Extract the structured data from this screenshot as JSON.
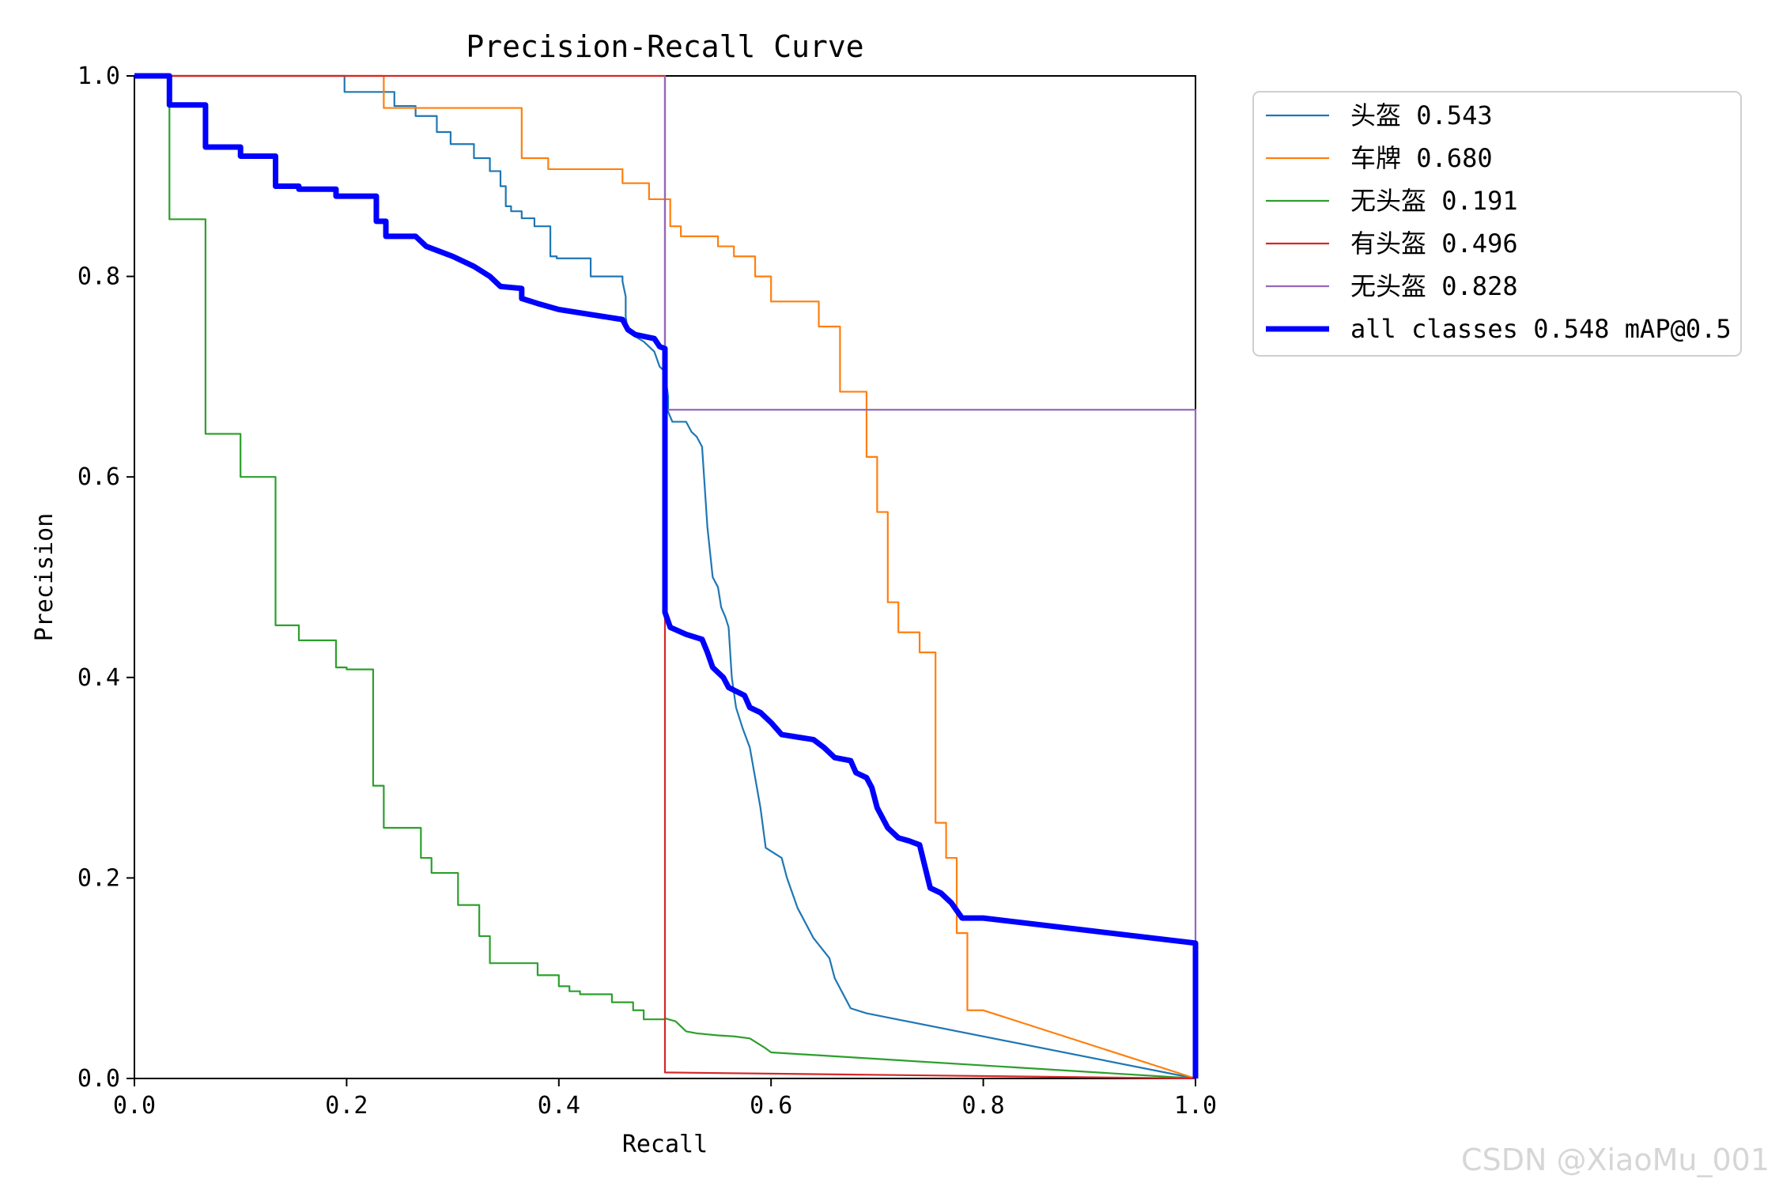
{
  "watermark": "CSDN @XiaoMu_001",
  "chart_data": {
    "type": "line",
    "title": "Precision-Recall Curve",
    "xlabel": "Recall",
    "ylabel": "Precision",
    "xlim": [
      0,
      1
    ],
    "ylim": [
      0,
      1
    ],
    "xticks": [
      "0.0",
      "0.2",
      "0.4",
      "0.6",
      "0.8",
      "1.0"
    ],
    "yticks": [
      "0.0",
      "0.2",
      "0.4",
      "0.6",
      "0.8",
      "1.0"
    ],
    "grid": false,
    "legend_position": "outside-top-right",
    "series": [
      {
        "name": "头盔 0.543",
        "color": "#1f77b4",
        "width": 2.2,
        "points": [
          [
            0,
            1
          ],
          [
            0.198,
            1
          ],
          [
            0.198,
            0.984
          ],
          [
            0.245,
            0.984
          ],
          [
            0.245,
            0.97
          ],
          [
            0.265,
            0.97
          ],
          [
            0.265,
            0.96
          ],
          [
            0.285,
            0.96
          ],
          [
            0.285,
            0.944
          ],
          [
            0.298,
            0.944
          ],
          [
            0.298,
            0.932
          ],
          [
            0.32,
            0.932
          ],
          [
            0.32,
            0.918
          ],
          [
            0.335,
            0.918
          ],
          [
            0.335,
            0.905
          ],
          [
            0.345,
            0.905
          ],
          [
            0.345,
            0.89
          ],
          [
            0.35,
            0.89
          ],
          [
            0.35,
            0.87
          ],
          [
            0.355,
            0.87
          ],
          [
            0.355,
            0.865
          ],
          [
            0.365,
            0.865
          ],
          [
            0.365,
            0.858
          ],
          [
            0.377,
            0.858
          ],
          [
            0.377,
            0.85
          ],
          [
            0.392,
            0.85
          ],
          [
            0.392,
            0.82
          ],
          [
            0.398,
            0.82
          ],
          [
            0.398,
            0.818
          ],
          [
            0.43,
            0.818
          ],
          [
            0.43,
            0.8
          ],
          [
            0.46,
            0.8
          ],
          [
            0.46,
            0.795
          ],
          [
            0.463,
            0.78
          ],
          [
            0.463,
            0.76
          ],
          [
            0.465,
            0.745
          ],
          [
            0.472,
            0.74
          ],
          [
            0.48,
            0.735
          ],
          [
            0.49,
            0.725
          ],
          [
            0.495,
            0.71
          ],
          [
            0.5,
            0.705
          ],
          [
            0.503,
            0.68
          ],
          [
            0.503,
            0.665
          ],
          [
            0.507,
            0.655
          ],
          [
            0.52,
            0.655
          ],
          [
            0.525,
            0.645
          ],
          [
            0.53,
            0.64
          ],
          [
            0.535,
            0.63
          ],
          [
            0.54,
            0.55
          ],
          [
            0.545,
            0.5
          ],
          [
            0.55,
            0.49
          ],
          [
            0.553,
            0.47
          ],
          [
            0.557,
            0.46
          ],
          [
            0.56,
            0.45
          ],
          [
            0.563,
            0.4
          ],
          [
            0.567,
            0.37
          ],
          [
            0.573,
            0.35
          ],
          [
            0.58,
            0.33
          ],
          [
            0.585,
            0.3
          ],
          [
            0.59,
            0.27
          ],
          [
            0.595,
            0.23
          ],
          [
            0.61,
            0.22
          ],
          [
            0.615,
            0.2
          ],
          [
            0.625,
            0.17
          ],
          [
            0.635,
            0.15
          ],
          [
            0.64,
            0.14
          ],
          [
            0.655,
            0.12
          ],
          [
            0.66,
            0.1
          ],
          [
            0.665,
            0.09
          ],
          [
            0.67,
            0.08
          ],
          [
            0.675,
            0.07
          ],
          [
            0.69,
            0.065
          ],
          [
            1,
            0
          ]
        ]
      },
      {
        "name": "车牌 0.680",
        "color": "#ff7f0e",
        "width": 2.2,
        "points": [
          [
            0,
            1
          ],
          [
            0.235,
            1
          ],
          [
            0.235,
            0.968
          ],
          [
            0.365,
            0.968
          ],
          [
            0.365,
            0.918
          ],
          [
            0.39,
            0.918
          ],
          [
            0.39,
            0.907
          ],
          [
            0.46,
            0.907
          ],
          [
            0.46,
            0.893
          ],
          [
            0.485,
            0.893
          ],
          [
            0.485,
            0.877
          ],
          [
            0.505,
            0.877
          ],
          [
            0.505,
            0.85
          ],
          [
            0.515,
            0.85
          ],
          [
            0.515,
            0.84
          ],
          [
            0.55,
            0.84
          ],
          [
            0.55,
            0.83
          ],
          [
            0.565,
            0.83
          ],
          [
            0.565,
            0.82
          ],
          [
            0.585,
            0.82
          ],
          [
            0.585,
            0.8
          ],
          [
            0.6,
            0.8
          ],
          [
            0.6,
            0.775
          ],
          [
            0.645,
            0.775
          ],
          [
            0.645,
            0.75
          ],
          [
            0.665,
            0.75
          ],
          [
            0.665,
            0.685
          ],
          [
            0.69,
            0.685
          ],
          [
            0.69,
            0.62
          ],
          [
            0.7,
            0.62
          ],
          [
            0.7,
            0.565
          ],
          [
            0.71,
            0.565
          ],
          [
            0.71,
            0.475
          ],
          [
            0.72,
            0.475
          ],
          [
            0.72,
            0.445
          ],
          [
            0.74,
            0.445
          ],
          [
            0.74,
            0.425
          ],
          [
            0.755,
            0.425
          ],
          [
            0.755,
            0.255
          ],
          [
            0.765,
            0.255
          ],
          [
            0.765,
            0.22
          ],
          [
            0.775,
            0.22
          ],
          [
            0.775,
            0.145
          ],
          [
            0.785,
            0.145
          ],
          [
            0.785,
            0.068
          ],
          [
            0.8,
            0.068
          ],
          [
            1,
            0
          ]
        ]
      },
      {
        "name": "无头盔 0.191",
        "color": "#2ca02c",
        "width": 2.2,
        "points": [
          [
            0,
            1
          ],
          [
            0.033,
            1
          ],
          [
            0.033,
            0.857
          ],
          [
            0.067,
            0.857
          ],
          [
            0.067,
            0.643
          ],
          [
            0.1,
            0.643
          ],
          [
            0.1,
            0.6
          ],
          [
            0.133,
            0.6
          ],
          [
            0.133,
            0.452
          ],
          [
            0.155,
            0.452
          ],
          [
            0.155,
            0.437
          ],
          [
            0.19,
            0.437
          ],
          [
            0.19,
            0.41
          ],
          [
            0.2,
            0.41
          ],
          [
            0.2,
            0.408
          ],
          [
            0.225,
            0.408
          ],
          [
            0.225,
            0.292
          ],
          [
            0.235,
            0.292
          ],
          [
            0.235,
            0.25
          ],
          [
            0.27,
            0.25
          ],
          [
            0.27,
            0.22
          ],
          [
            0.28,
            0.22
          ],
          [
            0.28,
            0.205
          ],
          [
            0.305,
            0.205
          ],
          [
            0.305,
            0.173
          ],
          [
            0.325,
            0.173
          ],
          [
            0.325,
            0.142
          ],
          [
            0.335,
            0.142
          ],
          [
            0.335,
            0.115
          ],
          [
            0.38,
            0.115
          ],
          [
            0.38,
            0.103
          ],
          [
            0.4,
            0.103
          ],
          [
            0.4,
            0.092
          ],
          [
            0.41,
            0.092
          ],
          [
            0.41,
            0.087
          ],
          [
            0.42,
            0.087
          ],
          [
            0.42,
            0.084
          ],
          [
            0.45,
            0.084
          ],
          [
            0.45,
            0.076
          ],
          [
            0.47,
            0.076
          ],
          [
            0.47,
            0.068
          ],
          [
            0.48,
            0.068
          ],
          [
            0.48,
            0.059
          ],
          [
            0.5,
            0.059
          ],
          [
            0.5,
            0.06
          ],
          [
            0.51,
            0.057
          ],
          [
            0.52,
            0.047
          ],
          [
            0.53,
            0.045
          ],
          [
            0.55,
            0.043
          ],
          [
            0.565,
            0.042
          ],
          [
            0.58,
            0.04
          ],
          [
            0.595,
            0.03
          ],
          [
            0.6,
            0.026
          ],
          [
            1,
            0
          ]
        ]
      },
      {
        "name": "有头盔 0.496",
        "color": "#d62728",
        "width": 2.2,
        "points": [
          [
            0,
            1
          ],
          [
            0.5,
            1
          ],
          [
            0.5,
            0.46
          ],
          [
            0.5,
            0.006
          ],
          [
            1,
            0
          ]
        ]
      },
      {
        "name": "无头盔 0.828",
        "color": "#9467bd",
        "width": 2.2,
        "points": [
          [
            0.5,
            1
          ],
          [
            0.5,
            0.667
          ],
          [
            1,
            0.667
          ],
          [
            1,
            0
          ]
        ]
      },
      {
        "name": "all classes 0.548 mAP@0.5",
        "color": "#0000ff",
        "width": 7,
        "points": [
          [
            0,
            1
          ],
          [
            0.033,
            1
          ],
          [
            0.033,
            0.971
          ],
          [
            0.067,
            0.971
          ],
          [
            0.067,
            0.929
          ],
          [
            0.1,
            0.929
          ],
          [
            0.1,
            0.92
          ],
          [
            0.133,
            0.92
          ],
          [
            0.133,
            0.89
          ],
          [
            0.155,
            0.89
          ],
          [
            0.155,
            0.887
          ],
          [
            0.19,
            0.887
          ],
          [
            0.19,
            0.88
          ],
          [
            0.228,
            0.88
          ],
          [
            0.228,
            0.855
          ],
          [
            0.237,
            0.855
          ],
          [
            0.237,
            0.84
          ],
          [
            0.265,
            0.84
          ],
          [
            0.275,
            0.83
          ],
          [
            0.3,
            0.82
          ],
          [
            0.32,
            0.81
          ],
          [
            0.335,
            0.8
          ],
          [
            0.345,
            0.79
          ],
          [
            0.365,
            0.788
          ],
          [
            0.365,
            0.778
          ],
          [
            0.38,
            0.773
          ],
          [
            0.4,
            0.767
          ],
          [
            0.43,
            0.762
          ],
          [
            0.46,
            0.757
          ],
          [
            0.465,
            0.747
          ],
          [
            0.472,
            0.742
          ],
          [
            0.49,
            0.738
          ],
          [
            0.495,
            0.73
          ],
          [
            0.5,
            0.728
          ],
          [
            0.5,
            0.465
          ],
          [
            0.505,
            0.45
          ],
          [
            0.52,
            0.443
          ],
          [
            0.535,
            0.438
          ],
          [
            0.54,
            0.425
          ],
          [
            0.545,
            0.41
          ],
          [
            0.555,
            0.4
          ],
          [
            0.56,
            0.39
          ],
          [
            0.575,
            0.382
          ],
          [
            0.58,
            0.37
          ],
          [
            0.59,
            0.365
          ],
          [
            0.6,
            0.355
          ],
          [
            0.61,
            0.343
          ],
          [
            0.64,
            0.338
          ],
          [
            0.65,
            0.33
          ],
          [
            0.66,
            0.32
          ],
          [
            0.675,
            0.317
          ],
          [
            0.68,
            0.305
          ],
          [
            0.69,
            0.3
          ],
          [
            0.695,
            0.29
          ],
          [
            0.7,
            0.27
          ],
          [
            0.71,
            0.25
          ],
          [
            0.72,
            0.24
          ],
          [
            0.73,
            0.237
          ],
          [
            0.74,
            0.233
          ],
          [
            0.75,
            0.19
          ],
          [
            0.76,
            0.185
          ],
          [
            0.77,
            0.175
          ],
          [
            0.78,
            0.16
          ],
          [
            0.8,
            0.16
          ],
          [
            1,
            0.135
          ],
          [
            1,
            0
          ]
        ]
      }
    ]
  }
}
